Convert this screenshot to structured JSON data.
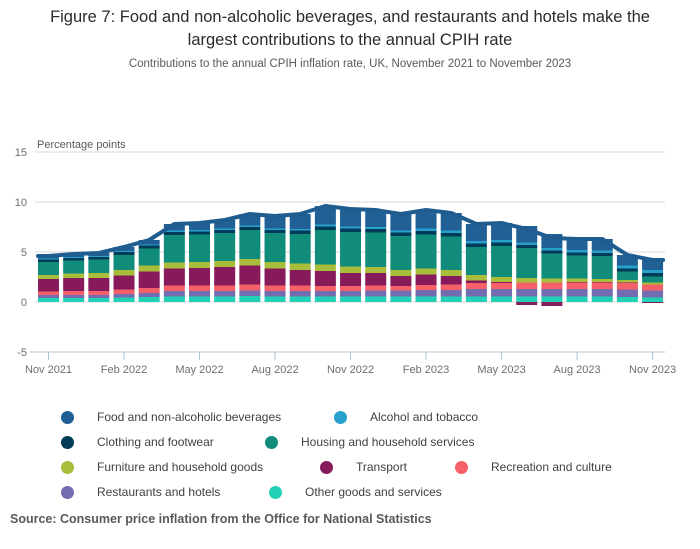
{
  "title": "Figure 7: Food and non-alcoholic beverages, and restaurants and hotels make the largest contributions to the annual CPIH rate",
  "subtitle": "Contributions to the annual CPIH inflation rate, UK, November 2021 to November 2023",
  "source": "Source: Consumer price inflation from the Office for National Statistics",
  "legend": {
    "items": [
      {
        "label": "Food and non-alcoholic beverages",
        "color": "#206095"
      },
      {
        "label": "Alcohol and tobacco",
        "color": "#27a0cc"
      },
      {
        "label": "Clothing and footwear",
        "color": "#003c57"
      },
      {
        "label": "Housing and household services",
        "color": "#118c7b"
      },
      {
        "label": "Furniture and household goods",
        "color": "#a8bd3a"
      },
      {
        "label": "Transport",
        "color": "#871a5b"
      },
      {
        "label": "Recreation and culture",
        "color": "#f66068"
      },
      {
        "label": "Restaurants and hotels",
        "color": "#746cb1"
      },
      {
        "label": "Other goods and services",
        "color": "#22d0b6"
      }
    ]
  },
  "chart_data": {
    "type": "bar",
    "stacked": true,
    "title": "",
    "ylabel": "Percentage points",
    "xlabel": "",
    "ylim": [
      -5,
      15
    ],
    "yticks": [
      15,
      10,
      5,
      0,
      -5
    ],
    "grid": true,
    "legend_position": "bottom",
    "x": [
      "Nov 2021",
      "Dec 2021",
      "Jan 2022",
      "Feb 2022",
      "Mar 2022",
      "Apr 2022",
      "May 2022",
      "Jun 2022",
      "Jul 2022",
      "Aug 2022",
      "Sep 2022",
      "Oct 2022",
      "Nov 2022",
      "Dec 2022",
      "Jan 2023",
      "Feb 2023",
      "Mar 2023",
      "Apr 2023",
      "May 2023",
      "Jun 2023",
      "Jul 2023",
      "Aug 2023",
      "Sep 2023",
      "Oct 2023",
      "Nov 2023"
    ],
    "xticks": [
      "Nov 2021",
      "Feb 2022",
      "May 2022",
      "Aug 2022",
      "Nov 2022",
      "Feb 2023",
      "May 2023",
      "Aug 2023",
      "Nov 2023"
    ],
    "series": [
      {
        "name": "Other goods and services",
        "color": "#22d0b6",
        "values": [
          0.4,
          0.4,
          0.4,
          0.45,
          0.5,
          0.55,
          0.55,
          0.55,
          0.6,
          0.55,
          0.55,
          0.55,
          0.55,
          0.55,
          0.55,
          0.55,
          0.55,
          0.55,
          0.55,
          0.55,
          0.55,
          0.55,
          0.55,
          0.5,
          0.45
        ]
      },
      {
        "name": "Restaurants and hotels",
        "color": "#746cb1",
        "values": [
          0.3,
          0.3,
          0.3,
          0.35,
          0.4,
          0.55,
          0.55,
          0.55,
          0.55,
          0.55,
          0.55,
          0.55,
          0.55,
          0.6,
          0.6,
          0.65,
          0.65,
          0.75,
          0.75,
          0.75,
          0.75,
          0.75,
          0.75,
          0.75,
          0.7
        ]
      },
      {
        "name": "Recreation and culture",
        "color": "#f66068",
        "values": [
          0.35,
          0.4,
          0.4,
          0.45,
          0.5,
          0.55,
          0.55,
          0.55,
          0.6,
          0.55,
          0.55,
          0.5,
          0.5,
          0.5,
          0.45,
          0.5,
          0.55,
          0.6,
          0.6,
          0.65,
          0.65,
          0.65,
          0.65,
          0.65,
          0.6
        ]
      },
      {
        "name": "Transport",
        "color": "#871a5b",
        "values": [
          1.25,
          1.3,
          1.3,
          1.4,
          1.65,
          1.7,
          1.75,
          1.85,
          1.9,
          1.7,
          1.55,
          1.5,
          1.3,
          1.25,
          1.0,
          1.05,
          0.85,
          0.25,
          0.1,
          -0.3,
          -0.4,
          0.05,
          0.05,
          0.05,
          -0.1
        ]
      },
      {
        "name": "Furniture and household goods",
        "color": "#a8bd3a",
        "values": [
          0.4,
          0.45,
          0.5,
          0.55,
          0.6,
          0.6,
          0.6,
          0.6,
          0.65,
          0.65,
          0.65,
          0.65,
          0.65,
          0.6,
          0.6,
          0.6,
          0.6,
          0.55,
          0.5,
          0.45,
          0.4,
          0.35,
          0.3,
          0.25,
          0.2
        ]
      },
      {
        "name": "Housing and household services",
        "color": "#118c7b",
        "values": [
          1.3,
          1.3,
          1.35,
          1.5,
          1.7,
          2.75,
          2.75,
          2.8,
          2.9,
          2.9,
          2.95,
          3.45,
          3.45,
          3.45,
          3.4,
          3.4,
          3.35,
          2.8,
          3.1,
          3.0,
          2.5,
          2.3,
          2.3,
          0.85,
          0.6
        ]
      },
      {
        "name": "Clothing and footwear",
        "color": "#003c57",
        "values": [
          0.25,
          0.25,
          0.25,
          0.3,
          0.3,
          0.3,
          0.3,
          0.3,
          0.3,
          0.3,
          0.35,
          0.35,
          0.35,
          0.35,
          0.35,
          0.35,
          0.35,
          0.35,
          0.35,
          0.3,
          0.3,
          0.3,
          0.3,
          0.3,
          0.35
        ]
      },
      {
        "name": "Alcohol and tobacco",
        "color": "#27a0cc",
        "values": [
          0.1,
          0.1,
          0.1,
          0.1,
          0.1,
          0.15,
          0.15,
          0.15,
          0.15,
          0.15,
          0.15,
          0.2,
          0.2,
          0.2,
          0.2,
          0.25,
          0.25,
          0.25,
          0.25,
          0.25,
          0.25,
          0.25,
          0.25,
          0.3,
          0.3
        ]
      },
      {
        "name": "Food and non-alcoholic beverages",
        "color": "#206095",
        "values": [
          0.25,
          0.3,
          0.3,
          0.4,
          0.45,
          0.65,
          0.7,
          0.85,
          1.15,
          1.25,
          1.5,
          1.85,
          1.75,
          1.7,
          1.65,
          1.85,
          1.75,
          1.7,
          1.7,
          1.65,
          1.4,
          1.1,
          1.15,
          1.05,
          1.1
        ]
      }
    ],
    "line": {
      "name": "CPIH annual inflation rate",
      "color": "#1f5c8f",
      "values": [
        4.6,
        4.8,
        4.9,
        5.5,
        6.2,
        7.8,
        7.9,
        8.2,
        8.8,
        8.6,
        8.8,
        9.6,
        9.3,
        9.2,
        8.8,
        9.2,
        8.9,
        7.8,
        7.9,
        7.3,
        6.4,
        6.3,
        6.3,
        4.7,
        4.2
      ]
    },
    "colors": {
      "grid": "#d9d9d9",
      "axis": "#aec6d4",
      "tick_label": "#6e6e6e",
      "axis_title": "#595959"
    }
  }
}
